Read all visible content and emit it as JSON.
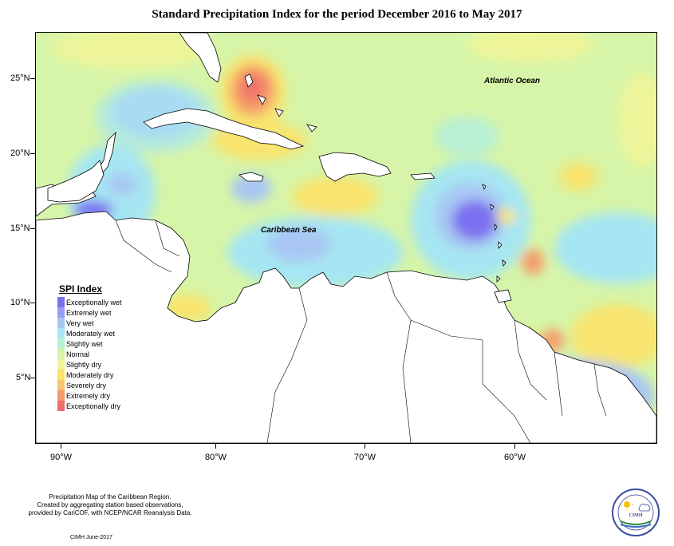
{
  "title": "Standard Precipitation Index for the period December 2016 to May 2017",
  "map": {
    "lat_labels": [
      "25°N",
      "20°N",
      "15°N",
      "10°N",
      "5°N"
    ],
    "lon_labels": [
      "90°W",
      "80°W",
      "70°W",
      "60°W"
    ],
    "region_labels": {
      "atlantic": "Atlantic Ocean",
      "caribbean": "Caribbean Sea"
    },
    "background_color": "#d6f5a8",
    "land_color": "#ffffff"
  },
  "legend": {
    "title": "SPI Index",
    "items": [
      {
        "label": "Exceptionally wet",
        "color": "#7b6ff0"
      },
      {
        "label": "Extremely wet",
        "color": "#9a9ef2"
      },
      {
        "label": "Very wet",
        "color": "#a9c6f3"
      },
      {
        "label": "Moderately wet",
        "color": "#a6e6f2"
      },
      {
        "label": "Slightly wet",
        "color": "#b8f0d4"
      },
      {
        "label": "Normal",
        "color": "#d6f5a8"
      },
      {
        "label": "Slightly dry",
        "color": "#eef59a"
      },
      {
        "label": "Moderately dry",
        "color": "#f8e46e"
      },
      {
        "label": "Severely dry",
        "color": "#f7c66f"
      },
      {
        "label": "Extremely dry",
        "color": "#f59a6a"
      },
      {
        "label": "Exceptionally dry",
        "color": "#ee6f6a"
      }
    ]
  },
  "footer": {
    "line1": "Precipitation Map of the Caribbean Region.",
    "line2": "Created by aggregating station based observations,",
    "line3": "provided by CariCOF, with NCEP/NCAR Reanalysis Data.",
    "credit": "CIMH June-2017"
  },
  "logo": {
    "text": "CIMH"
  }
}
